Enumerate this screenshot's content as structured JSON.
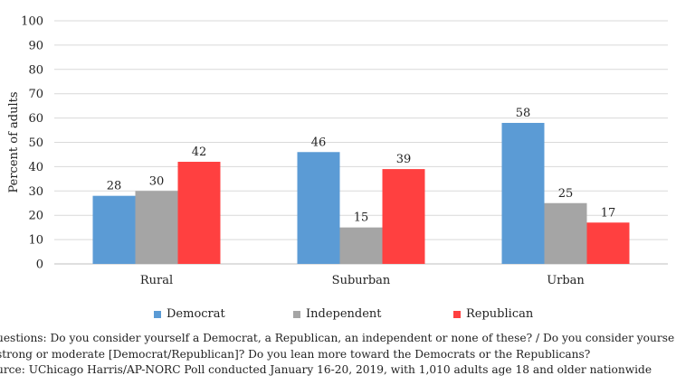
{
  "chart_data": {
    "type": "bar",
    "categories": [
      "Rural",
      "Suburban",
      "Urban"
    ],
    "series": [
      {
        "name": "Democrat",
        "values": [
          28,
          46,
          58
        ],
        "color": "#5b9bd5"
      },
      {
        "name": "Independent",
        "values": [
          30,
          15,
          25
        ],
        "color": "#a5a5a5"
      },
      {
        "name": "Republican",
        "values": [
          42,
          39,
          17
        ],
        "color": "#ff4040"
      }
    ],
    "ylabel": "Percent of adults",
    "xlabel": "",
    "ylim": [
      0,
      100
    ],
    "yticks": [
      0,
      10,
      20,
      30,
      40,
      50,
      60,
      70,
      80,
      90,
      100
    ],
    "grid": true,
    "legend_position": "bottom",
    "data_labels": true
  },
  "legend": {
    "items": [
      "Democrat",
      "Independent",
      "Republican"
    ]
  },
  "notes": {
    "line1": "uestions: Do you consider yourself a Democrat, a Republican, an independent or none of these? / Do you consider yourse",
    "line2": "strong or moderate [Democrat/Republican]? Do you lean more toward the Democrats or the Republicans?",
    "line3": "urce: UChicago Harris/AP-NORC Poll conducted January 16-20, 2019, with 1,010 adults age 18 and older nationwide"
  }
}
